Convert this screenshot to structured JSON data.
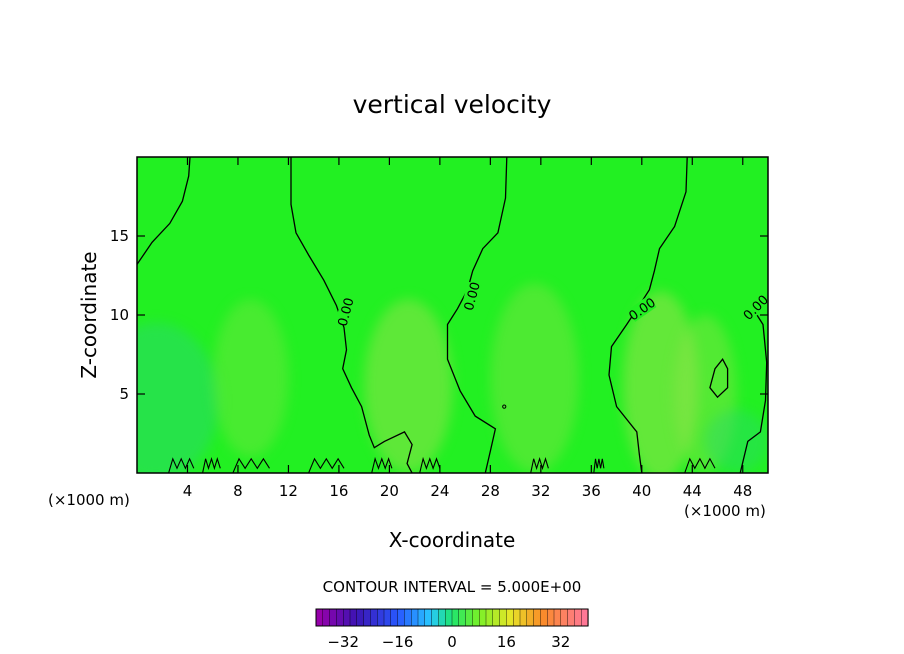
{
  "chart_data": {
    "type": "heatmap",
    "title": "vertical velocity",
    "xlabel": "X-coordinate",
    "ylabel": "Z-coordinate",
    "x_unit_label": "(×1000 m)",
    "xlim": [
      0,
      50
    ],
    "ylim": [
      0,
      20
    ],
    "x_ticks": [
      4,
      8,
      12,
      16,
      20,
      24,
      28,
      32,
      36,
      40,
      44,
      48
    ],
    "y_ticks": [
      5,
      10,
      15
    ],
    "zero_contour_labels": [
      "0.00",
      "0.00",
      "0.00",
      "0.00"
    ],
    "zero_contours": [
      [
        [
          0.0,
          13.2
        ],
        [
          1.2,
          14.6
        ],
        [
          2.6,
          15.8
        ],
        [
          3.6,
          17.2
        ],
        [
          4.1,
          18.8
        ],
        [
          4.2,
          20.0
        ]
      ],
      [
        [
          12.2,
          20.0
        ],
        [
          12.2,
          17.0
        ],
        [
          12.6,
          15.2
        ],
        [
          13.6,
          13.8
        ],
        [
          14.8,
          12.2
        ],
        [
          15.8,
          10.6
        ],
        [
          16.4,
          9.2
        ],
        [
          16.6,
          7.8
        ],
        [
          16.3,
          6.6
        ],
        [
          17.0,
          5.4
        ],
        [
          17.8,
          4.2
        ],
        [
          18.4,
          2.4
        ],
        [
          18.8,
          1.6
        ],
        [
          19.6,
          2.0
        ],
        [
          21.2,
          2.6
        ],
        [
          21.8,
          1.8
        ],
        [
          21.4,
          0.6
        ],
        [
          21.8,
          0.0
        ]
      ],
      [
        [
          29.3,
          20.0
        ],
        [
          29.2,
          17.4
        ],
        [
          28.6,
          15.2
        ],
        [
          27.4,
          14.2
        ],
        [
          26.6,
          12.8
        ],
        [
          26.2,
          11.6
        ],
        [
          25.4,
          10.4
        ],
        [
          24.6,
          9.4
        ],
        [
          24.6,
          7.2
        ],
        [
          25.6,
          5.2
        ],
        [
          26.8,
          3.6
        ],
        [
          28.4,
          2.8
        ],
        [
          28.0,
          1.4
        ],
        [
          27.6,
          0.0
        ]
      ],
      [
        [
          43.6,
          20.0
        ],
        [
          43.5,
          17.8
        ],
        [
          42.6,
          15.6
        ],
        [
          41.4,
          14.2
        ],
        [
          41.0,
          12.8
        ],
        [
          40.6,
          11.6
        ],
        [
          39.8,
          10.6
        ],
        [
          38.8,
          9.4
        ],
        [
          37.6,
          8.0
        ],
        [
          37.4,
          6.2
        ],
        [
          38.0,
          4.2
        ],
        [
          39.6,
          2.6
        ],
        [
          39.8,
          1.2
        ],
        [
          40.0,
          0.0
        ]
      ],
      [
        [
          48.8,
          10.4
        ],
        [
          49.6,
          9.4
        ],
        [
          49.9,
          7.0
        ],
        [
          49.8,
          4.6
        ],
        [
          49.4,
          2.6
        ],
        [
          48.4,
          2.0
        ],
        [
          47.8,
          0.0
        ]
      ]
    ],
    "closed_contour": [
      [
        46.8,
        6.6
      ],
      [
        46.4,
        7.2
      ],
      [
        45.8,
        6.6
      ],
      [
        45.4,
        5.4
      ],
      [
        46.0,
        4.8
      ],
      [
        46.8,
        5.4
      ]
    ],
    "contour_interval_text": "CONTOUR INTERVAL = 5.000E+00",
    "colorbar": {
      "range": [
        -40,
        40
      ],
      "tick_values": [
        -32,
        -16,
        0,
        16,
        32
      ],
      "tick_labels": [
        "−32",
        "−16",
        "0",
        "16",
        "32"
      ]
    },
    "colors": {
      "field_base": "#22f022",
      "field_light": "#8fe24a",
      "field_teal": "#2ad96a",
      "line": "#000000"
    }
  }
}
